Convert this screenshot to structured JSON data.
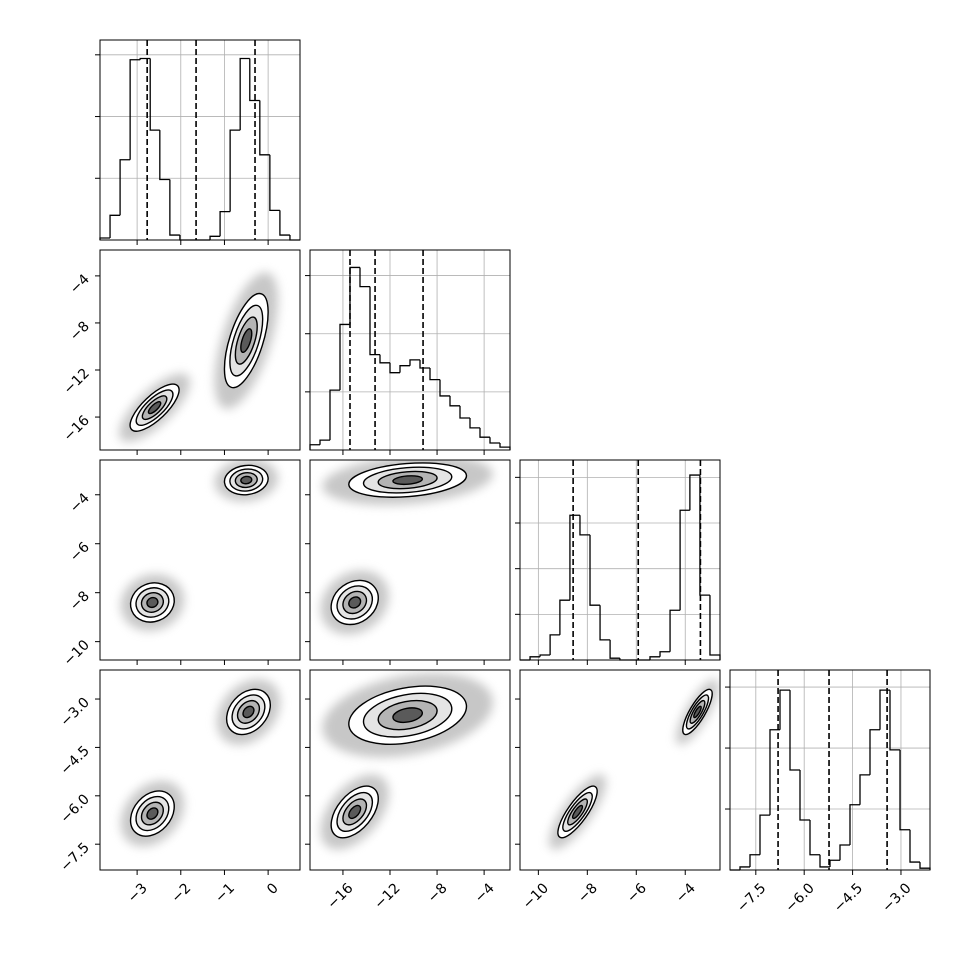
{
  "chart_data": {
    "type": "corner",
    "params": [
      {
        "lim": [
          -3.85,
          0.73
        ],
        "ticks": [
          {
            "value": -3,
            "label": "−3"
          },
          {
            "value": -2,
            "label": "−2"
          },
          {
            "value": -1,
            "label": "−1"
          },
          0
        ],
        "bins": [
          -3.85,
          -3.62,
          -3.39,
          -3.16,
          -2.93,
          -2.7,
          -2.48,
          -2.25,
          -2.02,
          -1.79,
          -1.56,
          -1.33,
          -1.1,
          -0.87,
          -0.64,
          -0.42,
          -0.19,
          0.04,
          0.27,
          0.5,
          0.73
        ],
        "counts": [
          16,
          200,
          650,
          1460,
          1470,
          890,
          490,
          40,
          0,
          0,
          0,
          30,
          230,
          890,
          1470,
          1130,
          690,
          240,
          40,
          0
        ],
        "quantiles": [
          -2.77,
          -1.65,
          -0.3
        ],
        "hist_ylim": [
          0,
          1620
        ],
        "hist_yticks": [
          500,
          1000,
          1500
        ]
      },
      {
        "lim": [
          -18.8,
          -1.8
        ],
        "ticks": [
          {
            "value": -16,
            "label": "−16"
          },
          {
            "value": -12,
            "label": "−12"
          },
          {
            "value": -8,
            "label": "−8"
          },
          {
            "value": -4,
            "label": "−4"
          }
        ],
        "bins": [
          -18.8,
          -17.95,
          -17.1,
          -16.25,
          -15.4,
          -14.55,
          -13.7,
          -12.85,
          -12,
          -11.15,
          -10.3,
          -9.45,
          -8.6,
          -7.75,
          -6.9,
          -6.05,
          -5.2,
          -4.35,
          -3.5,
          -2.65,
          -1.8
        ],
        "counts": [
          90,
          170,
          1030,
          2160,
          3140,
          2810,
          1640,
          1500,
          1330,
          1450,
          1550,
          1410,
          1210,
          930,
          760,
          550,
          380,
          220,
          120,
          50
        ],
        "quantiles": [
          -15.4,
          -13.27,
          -9.19
        ],
        "hist_ylim": [
          0,
          3440
        ],
        "hist_yticks": [
          1000,
          2000,
          3000
        ]
      },
      {
        "lim": [
          -10.75,
          -2.58
        ],
        "ticks": [
          {
            "value": -10,
            "label": "−10"
          },
          {
            "value": -8,
            "label": "−8"
          },
          {
            "value": -6,
            "label": "−6"
          },
          {
            "value": -4,
            "label": "−4"
          }
        ],
        "bins": [
          -10.75,
          -10.34,
          -9.93,
          -9.52,
          -9.12,
          -8.71,
          -8.3,
          -7.89,
          -7.48,
          -7.07,
          -6.67,
          -6.26,
          -5.85,
          -5.44,
          -5.03,
          -4.62,
          -4.21,
          -3.81,
          -3.4,
          -2.99,
          -2.58
        ],
        "counts": [
          0,
          70,
          110,
          550,
          1310,
          3170,
          2740,
          1200,
          440,
          40,
          0,
          0,
          0,
          70,
          180,
          1090,
          3280,
          4050,
          1420,
          110
        ],
        "quantiles": [
          -8.58,
          -5.92,
          -3.38
        ],
        "hist_ylim": [
          0,
          4380
        ],
        "hist_yticks": [
          1000,
          2000,
          3000,
          4000
        ]
      },
      {
        "lim": [
          -8.3,
          -2.1
        ],
        "ticks": [
          {
            "value": -7.5,
            "label": "−7.5"
          },
          {
            "value": -6,
            "label": "−6.0"
          },
          {
            "value": -4.5,
            "label": "−4.5"
          },
          {
            "value": -3,
            "label": "−3.0"
          }
        ],
        "bins": [
          -8.3,
          -7.99,
          -7.68,
          -7.37,
          -7.06,
          -6.75,
          -6.44,
          -6.13,
          -5.82,
          -5.51,
          -5.2,
          -4.89,
          -4.58,
          -4.27,
          -3.96,
          -3.65,
          -3.34,
          -3.03,
          -2.72,
          -2.41,
          -2.1
        ],
        "counts": [
          0,
          50,
          250,
          900,
          2300,
          2950,
          1640,
          820,
          250,
          50,
          160,
          410,
          1070,
          1560,
          2300,
          2950,
          1970,
          660,
          130,
          30
        ],
        "quantiles": [
          -6.81,
          -5.23,
          -3.43
        ],
        "hist_ylim": [
          0,
          3280
        ],
        "hist_yticks": [
          1000,
          2000,
          3000
        ]
      }
    ],
    "pairs": [
      [
        {
          "blobs": [
            {
              "x": -2.6,
              "y": -15.2,
              "sx": 0.28,
              "sy": 1.0,
              "rho": 0.75
            },
            {
              "x": -0.5,
              "y": -9.5,
              "sx": 0.25,
              "sy": 2.0,
              "rho": 0.6
            }
          ]
        }
      ],
      [
        {
          "blobs": [
            {
              "x": -2.65,
              "y": -8.4,
              "sx": 0.25,
              "sy": 0.4,
              "rho": 0.1
            },
            {
              "x": -0.5,
              "y": -3.4,
              "sx": 0.25,
              "sy": 0.3,
              "rho": 0.1
            }
          ]
        },
        {
          "blobs": [
            {
              "x": -15,
              "y": -8.4,
              "sx": 1.0,
              "sy": 0.45,
              "rho": 0.2
            },
            {
              "x": -10.5,
              "y": -3.4,
              "sx": 2.5,
              "sy": 0.35,
              "rho": 0.25
            }
          ]
        }
      ],
      [
        {
          "blobs": [
            {
              "x": -2.65,
              "y": -6.55,
              "sx": 0.25,
              "sy": 0.35,
              "rho": 0.3
            },
            {
              "x": -0.45,
              "y": -3.4,
              "sx": 0.25,
              "sy": 0.35,
              "rho": 0.3
            }
          ]
        },
        {
          "blobs": [
            {
              "x": -15,
              "y": -6.5,
              "sx": 1.0,
              "sy": 0.4,
              "rho": 0.5
            },
            {
              "x": -10.5,
              "y": -3.5,
              "sx": 2.5,
              "sy": 0.45,
              "rho": 0.3
            }
          ]
        },
        {
          "blobs": [
            {
              "x": -8.4,
              "y": -6.5,
              "sx": 0.4,
              "sy": 0.4,
              "rho": 0.8
            },
            {
              "x": -3.5,
              "y": -3.4,
              "sx": 0.3,
              "sy": 0.35,
              "rho": 0.8
            }
          ]
        }
      ]
    ]
  }
}
